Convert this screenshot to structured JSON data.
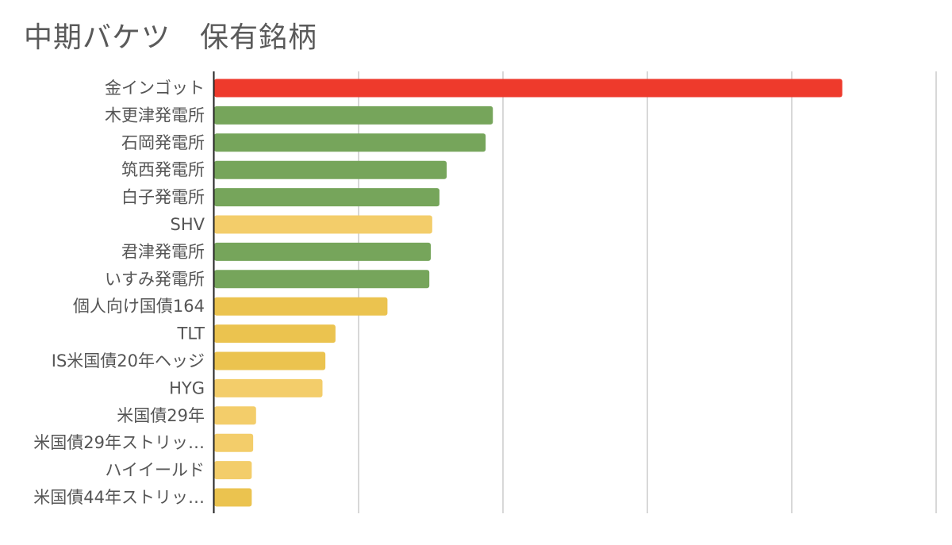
{
  "chart_data": {
    "type": "bar",
    "orientation": "horizontal",
    "title": "中期バケツ　保有銘柄",
    "xlabel": "",
    "ylabel": "",
    "xlim": [
      0,
      5
    ],
    "grid": true,
    "legend": "none",
    "categories": [
      "金インゴット",
      "木更津発電所",
      "石岡発電所",
      "筑西発電所",
      "白子発電所",
      "SHV",
      "君津発電所",
      "いすみ発電所",
      "個人向け国債164",
      "TLT",
      "IS米国債20年ヘッジ",
      "HYG",
      "米国債29年",
      "米国債29年ストリッ…",
      "ハイイールド",
      "米国債44年ストリッ…"
    ],
    "values": [
      4.35,
      1.93,
      1.88,
      1.61,
      1.56,
      1.51,
      1.5,
      1.49,
      1.2,
      0.84,
      0.77,
      0.75,
      0.29,
      0.27,
      0.26,
      0.26
    ],
    "colors": [
      "#ee3a2c",
      "#76a55b",
      "#76a55b",
      "#76a55b",
      "#76a55b",
      "#f3cd6a",
      "#76a55b",
      "#76a55b",
      "#ebc34f",
      "#ebc34f",
      "#ebc34f",
      "#f3cd6a",
      "#f3cd6a",
      "#f3cd6a",
      "#f3cd6a",
      "#ebc34f"
    ]
  }
}
